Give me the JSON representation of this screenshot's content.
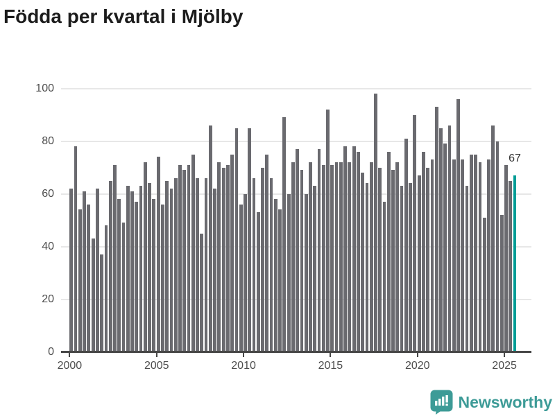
{
  "title": "Födda per kvartal i Mjölby",
  "logo": {
    "text": "Newsworthy",
    "icon": "newsworthy-bar-chart-bubble-icon"
  },
  "annotation": {
    "last_value_label": "67"
  },
  "colors": {
    "bar": "#6a6a6f",
    "highlight": "#009d96",
    "axis": "#474747",
    "grid": "#e7e7e7",
    "tick_label": "#4d4d4d",
    "title": "#1c1c1c",
    "logo_teal": "#3d9b97",
    "value_label": "#333333"
  },
  "chart_data": {
    "type": "bar",
    "title": "Födda per kvartal i Mjölby",
    "frequency": "quarterly",
    "x_start": "2000-Q1",
    "x_end": "2025-Q3",
    "values": [
      62,
      78,
      54,
      61,
      56,
      43,
      62,
      37,
      48,
      65,
      71,
      58,
      49,
      63,
      61,
      57,
      63,
      72,
      64,
      58,
      74,
      56,
      65,
      62,
      66,
      71,
      69,
      71,
      75,
      66,
      45,
      66,
      86,
      62,
      72,
      70,
      71,
      75,
      85,
      56,
      60,
      85,
      66,
      53,
      70,
      75,
      66,
      58,
      54,
      89,
      60,
      72,
      77,
      69,
      60,
      72,
      63,
      77,
      71,
      92,
      71,
      72,
      72,
      78,
      72,
      78,
      76,
      68,
      64,
      72,
      98,
      70,
      57,
      76,
      69,
      72,
      63,
      81,
      64,
      90,
      67,
      76,
      70,
      73,
      93,
      85,
      79,
      86,
      73,
      96,
      73,
      63,
      75,
      75,
      72,
      51,
      73,
      86,
      80,
      52,
      71,
      65,
      67
    ],
    "highlight_index": 102,
    "highlight_value_label": "67",
    "ylim": [
      0,
      100
    ],
    "yticks": [
      0,
      20,
      40,
      60,
      80,
      100
    ],
    "xtick_labels": [
      "2000",
      "2005",
      "2010",
      "2015",
      "2020",
      "2025"
    ],
    "xtick_bar_indices": [
      0,
      20,
      40,
      60,
      80,
      100
    ],
    "grid": "horizontal",
    "legend": "none"
  }
}
